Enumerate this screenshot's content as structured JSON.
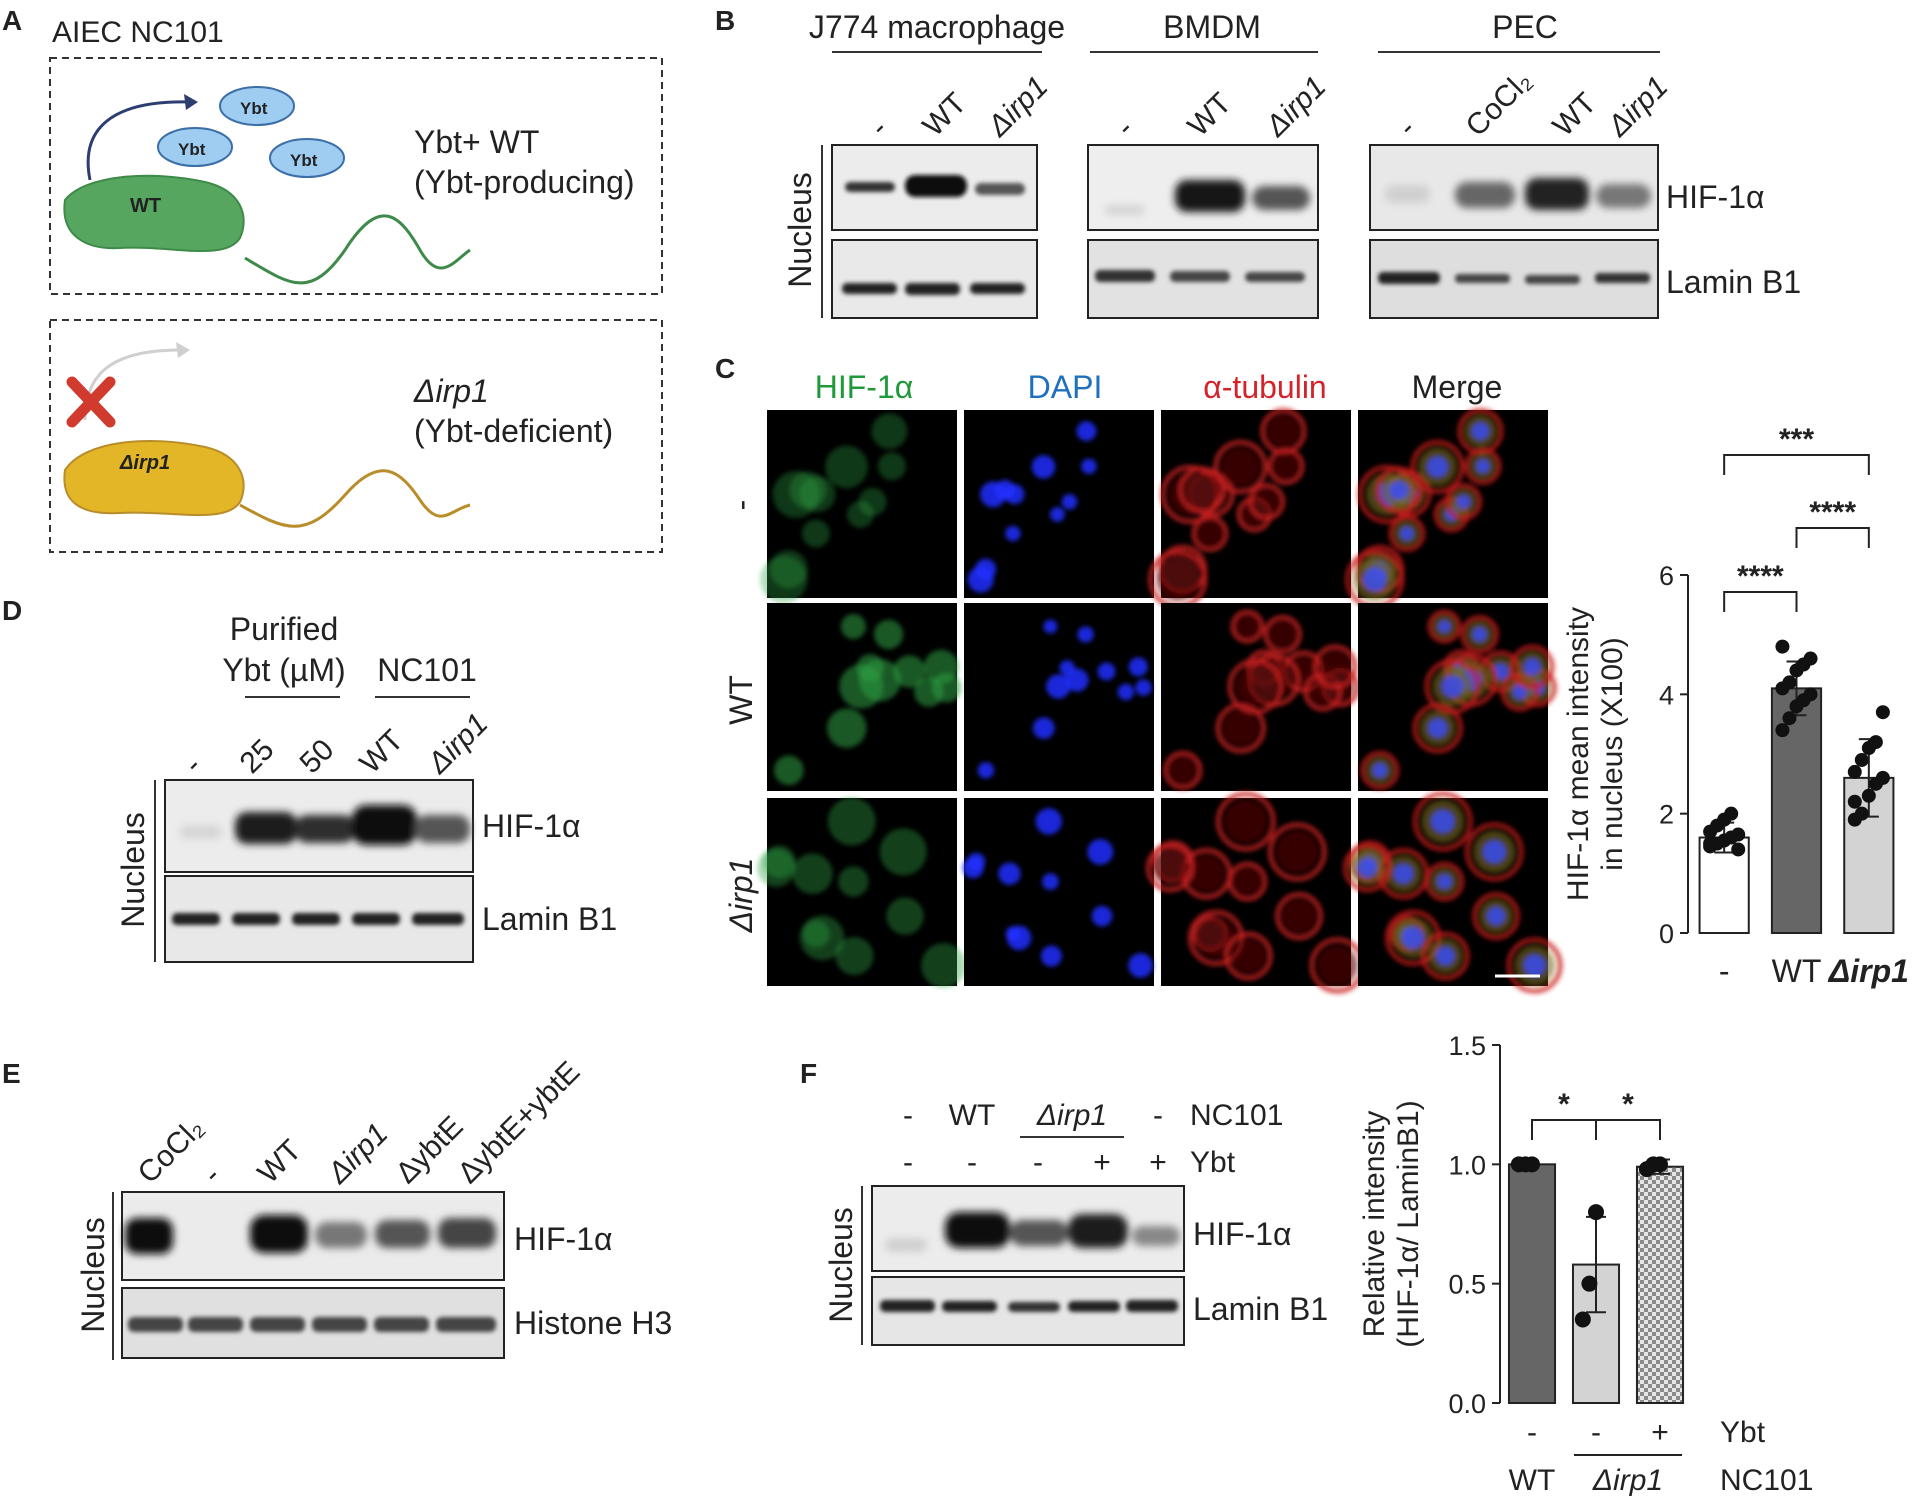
{
  "panels": {
    "A": "A",
    "B": "B",
    "C": "C",
    "D": "D",
    "E": "E",
    "F": "F"
  },
  "panelA": {
    "title": "AIEC NC101",
    "ybt": "Ybt",
    "wt_label": "WT",
    "mut_label": "Δirp1",
    "wt_line1": "Ybt+ WT",
    "wt_line2": "(Ybt-producing)",
    "mut_line1": "Δirp1",
    "mut_line2": "(Ybt-deficient)",
    "colors": {
      "wt": "#4fa35a",
      "mut": "#e3b627",
      "ybt": "#9fcdf2",
      "cross": "#d13b2e"
    }
  },
  "panelB": {
    "groups": [
      "J774 macrophage",
      "BMDM",
      "PEC"
    ],
    "lanes_j774": [
      "-",
      "WT",
      "Δirp1"
    ],
    "lanes_bmdm": [
      "-",
      "WT",
      "Δirp1"
    ],
    "lanes_pec": [
      "-",
      "CoCl₂",
      "WT",
      "Δirp1"
    ],
    "side": "Nucleus",
    "proteins": [
      "HIF-1α",
      "Lamin B1"
    ]
  },
  "panelC": {
    "channels": [
      "HIF-1α",
      "DAPI",
      "α-tubulin",
      "Merge"
    ],
    "channel_colors": [
      "#1f9a3a",
      "#1f6fbf",
      "#d4232a",
      "#222222"
    ],
    "rows": [
      "-",
      "WT",
      "Δirp1"
    ],
    "chart_data": {
      "type": "bar",
      "categories": [
        "-",
        "WT",
        "Δirp1"
      ],
      "values": [
        1.6,
        4.1,
        2.6
      ],
      "errors": [
        0.25,
        0.45,
        0.65
      ],
      "points": [
        [
          1.45,
          1.5,
          1.55,
          1.6,
          1.65,
          1.7,
          1.8,
          1.9,
          2.0,
          1.4,
          1.5
        ],
        [
          3.4,
          3.6,
          3.8,
          3.9,
          4.0,
          4.1,
          4.2,
          4.4,
          4.5,
          4.6,
          4.8
        ],
        [
          1.9,
          2.0,
          2.3,
          2.5,
          2.6,
          2.7,
          2.9,
          3.1,
          3.2,
          3.7,
          2.2
        ]
      ],
      "ylabel_line1": "HIF-1α mean intensity",
      "ylabel_line2": "in  nucleus (X100)",
      "ylim": [
        0,
        6
      ],
      "yticks": [
        "0",
        "2",
        "4",
        "6"
      ],
      "colors": [
        "#ffffff",
        "#666666",
        "#d3d3d3"
      ],
      "significance": [
        {
          "label": "****",
          "from": 0,
          "to": 1
        },
        {
          "label": "****",
          "from": 1,
          "to": 2
        },
        {
          "label": "***",
          "from": 0,
          "to": 2
        }
      ]
    }
  },
  "panelD": {
    "header1": "Purified",
    "header2": "Ybt (µM)",
    "header3": "NC101",
    "lanes": [
      "-",
      "25",
      "50",
      "WT",
      "Δirp1"
    ],
    "side": "Nucleus",
    "proteins": [
      "HIF-1α",
      "Lamin B1"
    ]
  },
  "panelE": {
    "lanes": [
      "CoCl₂",
      "-",
      "WT",
      "Δirp1",
      "ΔybtE",
      "ΔybtE+ybtE"
    ],
    "side": "Nucleus",
    "proteins": [
      "HIF-1α",
      "Histone H3"
    ]
  },
  "panelF": {
    "row1": [
      "-",
      "WT",
      "Δirp1",
      "-"
    ],
    "row1_label": "NC101",
    "row2": [
      "-",
      "-",
      "-",
      "+",
      "+"
    ],
    "row2_label": "Ybt",
    "side": "Nucleus",
    "proteins": [
      "HIF-1α",
      "Lamin B1"
    ],
    "chart_data": {
      "type": "bar",
      "categories": [
        "WT",
        "Δirp1 -",
        "Δirp1 +"
      ],
      "values": [
        1.0,
        0.58,
        0.99
      ],
      "errors": [
        0.0,
        0.2,
        0.03
      ],
      "points": [
        [
          1.0,
          1.0,
          1.0
        ],
        [
          0.35,
          0.5,
          0.8
        ],
        [
          0.98,
          1.0,
          1.0
        ]
      ],
      "ylabel_line1": "Relative intensity",
      "ylabel_line2": "(HIF-1α/ LaminB1)",
      "ylim": [
        0,
        1.5
      ],
      "yticks": [
        "0.0",
        "0.5",
        "1.0",
        "1.5"
      ],
      "ybt_row": [
        "-",
        "-",
        "+"
      ],
      "ybt_label": "Ybt",
      "strain_row": [
        "WT",
        "Δirp1"
      ],
      "strain_label": "NC101",
      "colors": [
        "#666666",
        "#d3d3d3",
        "#cfcfcf"
      ],
      "significance": [
        {
          "label": "*",
          "from": 0,
          "to": 1
        },
        {
          "label": "*",
          "from": 1,
          "to": 2
        }
      ]
    }
  }
}
